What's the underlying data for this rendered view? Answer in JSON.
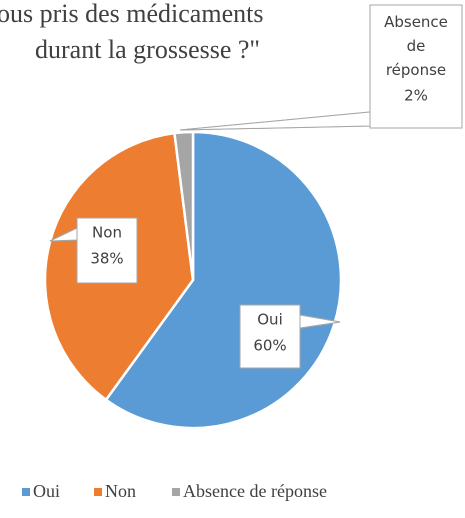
{
  "chart_data": {
    "type": "pie",
    "title": [
      "ous pris des médicaments",
      "durant la grossesse ?\""
    ],
    "categories": [
      "Oui",
      "Non",
      "Absence de réponse"
    ],
    "values": [
      60,
      38,
      2
    ],
    "value_labels": [
      "60%",
      "38%",
      "2%"
    ],
    "colors": [
      "#5b9bd5",
      "#ed7d31",
      "#a5a5a5"
    ],
    "legend": "bottom"
  }
}
